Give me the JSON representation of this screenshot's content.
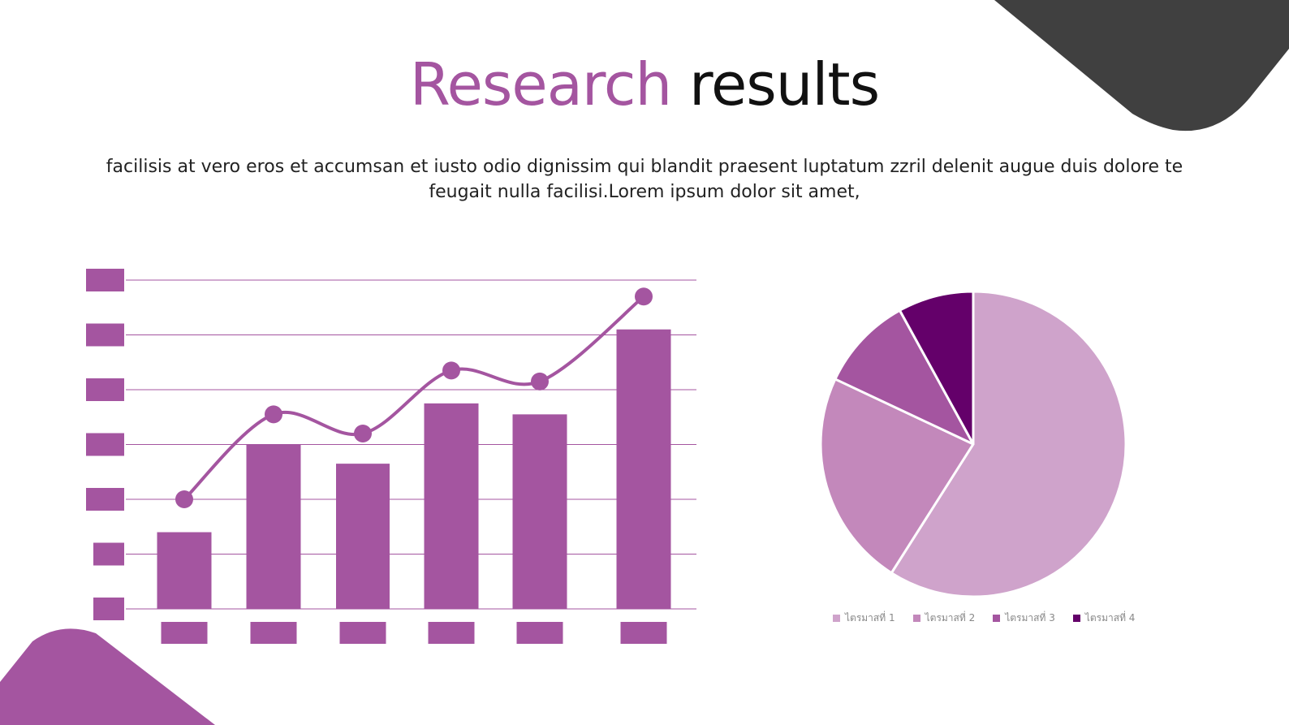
{
  "title": {
    "accent": "Research",
    "rest": "results"
  },
  "body_text": "facilisis at vero eros et accumsan et iusto odio dignissim qui blandit praesent luptatum zzril delenit augue duis dolore te feugait nulla facilisi.Lorem ipsum dolor sit amet,",
  "colors": {
    "primary": "#a455a0",
    "dark": "#404040",
    "pie": [
      "#cfa3cb",
      "#c388bb",
      "#a455a0",
      "#64006a"
    ]
  },
  "chart_data": [
    {
      "type": "bar",
      "categories": [
        "",
        "",
        "",
        "",
        "",
        ""
      ],
      "series": [
        {
          "type": "bar",
          "values": [
            14,
            30,
            26.5,
            37.5,
            35.5,
            51
          ]
        },
        {
          "type": "line",
          "values": [
            20,
            35.5,
            32,
            43.5,
            41.5,
            57
          ]
        }
      ],
      "ylim": [
        0,
        60
      ],
      "yticks": [
        0,
        10,
        20,
        30,
        40,
        50,
        60
      ],
      "grid": true
    },
    {
      "type": "pie",
      "slices": [
        {
          "label": "ไตรมาสที่ 1",
          "value": 59
        },
        {
          "label": "ไตรมาสที่ 2",
          "value": 23
        },
        {
          "label": "ไตรมาสที่ 3",
          "value": 10
        },
        {
          "label": "ไตรมาสที่ 4",
          "value": 8
        }
      ],
      "legend": "bottom"
    }
  ]
}
